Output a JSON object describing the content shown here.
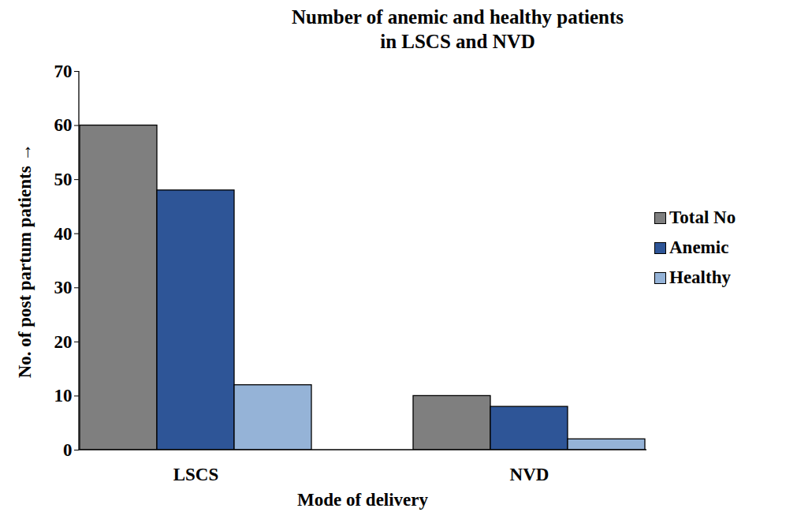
{
  "chart_data": {
    "type": "bar",
    "title": "Number of anemic and healthy patients\nin LSCS and NVD",
    "x_label": "Mode of delivery",
    "y_label": "No. of post partum patients",
    "categories": [
      "LSCS",
      "NVD"
    ],
    "series": [
      {
        "name": "Total No",
        "color": "#7f7f7f",
        "values": [
          60,
          10
        ]
      },
      {
        "name": "Anemic",
        "color": "#2e5597",
        "values": [
          48,
          8
        ]
      },
      {
        "name": "Healthy",
        "color": "#95b3d7",
        "values": [
          12,
          2
        ]
      }
    ],
    "ylim": [
      0,
      70
    ],
    "yticks": [
      0,
      10,
      20,
      30,
      40,
      50,
      60,
      70
    ],
    "grid": false,
    "legend": "right"
  }
}
